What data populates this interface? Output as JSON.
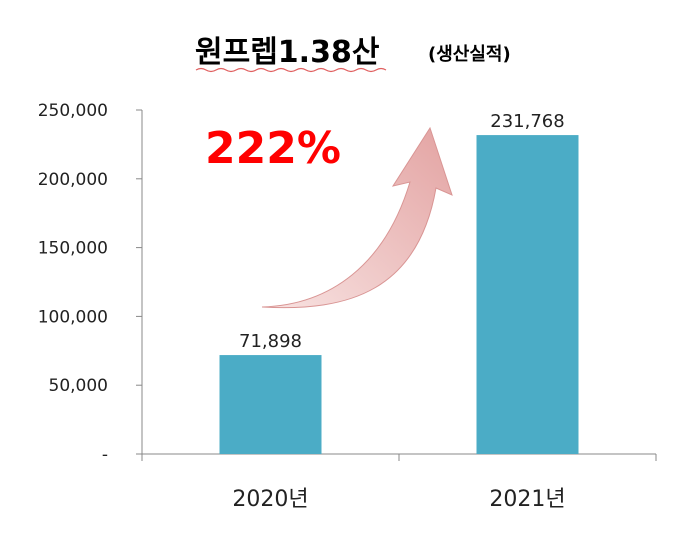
{
  "chart_data": {
    "type": "bar",
    "title": "원프렙1.38산",
    "subtitle": "(생산실적)",
    "categories": [
      "2020년",
      "2021년"
    ],
    "values": [
      71898,
      231768
    ],
    "data_labels": [
      "71,898",
      "231,768"
    ],
    "ylim": [
      0,
      250000
    ],
    "y_ticks": [
      0,
      50000,
      100000,
      150000,
      200000,
      250000
    ],
    "y_tick_labels": [
      "-",
      "50,000",
      "100,000",
      "150,000",
      "200,000",
      "250,000"
    ],
    "grid": false,
    "legend": "none",
    "annotation": "222%"
  },
  "colors": {
    "bar": "#4BACC6",
    "annotation_text": "#FF0000",
    "arrow": "#E6A9A8",
    "title_underline": "#E06060"
  }
}
